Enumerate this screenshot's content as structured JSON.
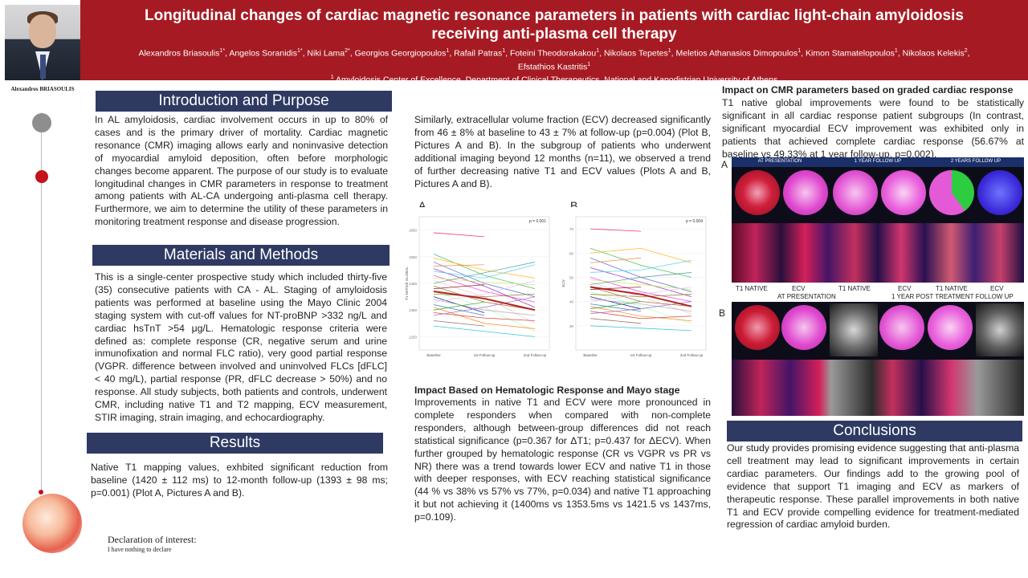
{
  "header": {
    "title": "Longitudinal changes of cardiac magnetic resonance parameters in patients with cardiac light-chain amyloidosis receiving anti-plasma cell therapy",
    "authors": [
      {
        "name": "Alexandros Briasoulis",
        "sup": "1*"
      },
      {
        "name": "Angelos Soranidis",
        "sup": "1*"
      },
      {
        "name": "Niki Lama",
        "sup": "2*"
      },
      {
        "name": "Georgios Georgiopoulos",
        "sup": "1"
      },
      {
        "name": "Rafail Patras",
        "sup": "1"
      },
      {
        "name": "Foteini Theodorakakou",
        "sup": "1"
      },
      {
        "name": "Nikolaos Tepetes",
        "sup": "1"
      },
      {
        "name": "Meletios Athanasios Dimopoulos",
        "sup": "1"
      },
      {
        "name": "Kimon Stamatelopoulos",
        "sup": "1"
      },
      {
        "name": "Nikolaos Kelekis",
        "sup": "2"
      },
      {
        "name": "Efstathios Kastritis",
        "sup": "1"
      }
    ],
    "affiliation_sup": "1",
    "affiliation": "Amyloidosis Center of Excellence, Department of Clinical Therapeutics, National and Kapodistrian University of Athens"
  },
  "presenter": {
    "name": "Alexandros BRIASOULIS"
  },
  "sections": {
    "intro_title": "Introduction and Purpose",
    "intro_text": "In AL amyloidosis, cardiac involvement occurs in up to 80% of cases and is the primary driver of mortality. Cardiac magnetic resonance (CMR) imaging allows early and noninvasive detection of myocardial amyloid deposition, often before morphologic changes become apparent. The purpose of our study is to evaluate longitudinal changes in CMR parameters in response to treatment among patients with AL-CA undergoing anti-plasma cell therapy. Furthermore, we aim to determine the utility of these parameters in monitoring treatment response and disease progression.",
    "methods_title": "Materials and Methods",
    "methods_text": "This is a single-center prospective study which included thirty-five (35) consecutive patients with CA - AL. Staging of amyloidosis patients was performed at baseline using the Mayo Clinic 2004 staging system with cut-off values for NT-proBNP >332 ng/L and cardiac hsTnT >54 μg/L. Hematologic response criteria were defined as: complete response (CR, negative serum and urine inmunofixation and normal FLC ratio), very good partial response (VGPR. difference between involved and uninvolved FLCs [dFLC] < 40 mg/L), partial response (PR, dFLC decrease > 50%) and no response. All study subjects, both patients and controls, underwent CMR, including native T1 and T2 mapping, ECV measurement, STIR imaging, strain imaging, and echocardiography.",
    "results_title": "Results",
    "results_text": "Native T1 mapping values, exhbited significant reduction from baseline (1420 ± 112 ms) to 12-month follow-up (1393 ± 98 ms; p=0.001) (Plot A, Pictures A and B).",
    "ecv_text": "Similarly, extracellular volume fraction (ECV) decreased significantly from 46 ± 8% at baseline to 43 ± 7% at follow-up (p=0.004) (Plot B, Pictures A and B). In the subgroup of patients who underwent additional imaging beyond 12 months (n=11), we observed a trend of further decreasing native T1 and ECV values (Plots A and B, Pictures A and B).",
    "hema_title": "Impact Based on Hematologic Response and Mayo stage",
    "hema_text": "Improvements in native T1 and ECV were more pronounced in complete responders when compared with non-complete responders, although between-group differences did not reach statistical significance (p=0.367 for ΔT1; p=0.437 for ΔECV). When further grouped by hematologic response (CR vs VGPR vs PR vs NR) there was a trend towards lower ECV and native T1 in those with deeper responses, with ECV reaching statistical significance (44 % vs 38% vs 57% vs 77%, p=0.034) and native T1 approaching it but not achieving it (1400ms vs 1353.5ms vs 1421.5 vs 1437ms, p=0.109).",
    "graded_title": "Impact on CMR parameters based on graded cardiac response",
    "graded_text": "T1 native global improvements were found to be statistically significant in all cardiac response patient subgroups (In contrast, significant myocardial ECV improvement was exhibited only in patients that achieved complete cardiac response (56.67% at baseline vs 49.33% at 1 year follow-up, p=0.002).",
    "conclusions_title": "Conclusions",
    "conclusions_text": "Our study provides promising evidence suggesting that anti-plasma cell treatment may lead to significant improvements in certain cardiac parameters. Our findings add to the growing pool of evidence that support T1 imaging and ECV as markers of therapeutic response. These parallel improvements in both native T1 and ECV provide compelling evidence for treatment-mediated regression of cardiac amyloid burden."
  },
  "declaration": {
    "title": "Declaration of interest:",
    "text": "I have nothing to declare"
  },
  "chart_data": [
    {
      "type": "line",
      "panel": "A",
      "pvalue": "p = 0.001",
      "ylabel": "T1 NATIVE GLOBAL",
      "categories": [
        "Baseline",
        "1st Follow-up",
        "2nd Follow-up"
      ],
      "ylim": [
        1200,
        1700
      ],
      "yticks": [
        1250,
        1350,
        1450,
        1550,
        1650
      ],
      "series": [
        {
          "values": [
            1640,
            1625,
            null
          ]
        },
        {
          "values": [
            1560,
            1480,
            1430
          ]
        },
        {
          "values": [
            1545,
            1500,
            1470
          ]
        },
        {
          "values": [
            1530,
            1450,
            1400
          ]
        },
        {
          "values": [
            1515,
            1520,
            null
          ]
        },
        {
          "values": [
            1505,
            1440,
            1360
          ]
        },
        {
          "values": [
            1495,
            1470,
            1520
          ]
        },
        {
          "values": [
            1480,
            1420,
            1380
          ]
        },
        {
          "values": [
            1470,
            1455,
            1445
          ]
        },
        {
          "values": [
            1460,
            1400,
            1300
          ]
        },
        {
          "values": [
            1450,
            1490,
            1530
          ]
        },
        {
          "values": [
            1440,
            1380,
            1350
          ]
        },
        {
          "values": [
            1430,
            1445,
            null
          ]
        },
        {
          "values": [
            1420,
            1360,
            1270
          ]
        },
        {
          "values": [
            1410,
            1400,
            1410
          ]
        },
        {
          "values": [
            1400,
            1340,
            null
          ]
        },
        {
          "values": [
            1390,
            1350,
            1330
          ]
        },
        {
          "values": [
            1380,
            1410,
            1460
          ]
        },
        {
          "values": [
            1370,
            1330,
            null
          ]
        },
        {
          "values": [
            1360,
            1300,
            1280
          ]
        },
        {
          "values": [
            1350,
            1380,
            null
          ]
        },
        {
          "values": [
            1340,
            1320,
            1310
          ]
        },
        {
          "values": [
            1330,
            1360,
            1400
          ]
        },
        {
          "values": [
            1310,
            1290,
            null
          ]
        },
        {
          "values": [
            1290,
            1270,
            1250
          ]
        }
      ],
      "mean": [
        1420,
        1393,
        1350
      ]
    },
    {
      "type": "line",
      "panel": "B",
      "pvalue": "p = 0.004",
      "ylabel": "ECV",
      "categories": [
        "Baseline",
        "1st Follow-up",
        "2nd Follow-up"
      ],
      "ylim": [
        20,
        75
      ],
      "yticks": [
        30,
        40,
        50,
        60,
        70
      ],
      "series": [
        {
          "values": [
            70,
            69,
            null
          ]
        },
        {
          "values": [
            62,
            55,
            50
          ]
        },
        {
          "values": [
            60,
            62,
            56
          ]
        },
        {
          "values": [
            58,
            50,
            44
          ]
        },
        {
          "values": [
            56,
            58,
            null
          ]
        },
        {
          "values": [
            54,
            48,
            42
          ]
        },
        {
          "values": [
            52,
            53,
            57
          ]
        },
        {
          "values": [
            50,
            44,
            40
          ]
        },
        {
          "values": [
            49,
            47,
            45
          ]
        },
        {
          "values": [
            48,
            42,
            35
          ]
        },
        {
          "values": [
            47,
            50,
            52
          ]
        },
        {
          "values": [
            46,
            40,
            38
          ]
        },
        {
          "values": [
            45,
            46,
            null
          ]
        },
        {
          "values": [
            44,
            38,
            31
          ]
        },
        {
          "values": [
            43,
            42,
            43
          ]
        },
        {
          "values": [
            42,
            37,
            null
          ]
        },
        {
          "values": [
            41,
            39,
            36
          ]
        },
        {
          "values": [
            40,
            43,
            46
          ]
        },
        {
          "values": [
            39,
            36,
            null
          ]
        },
        {
          "values": [
            38,
            34,
            32
          ]
        },
        {
          "values": [
            37,
            40,
            null
          ]
        },
        {
          "values": [
            36,
            33,
            34
          ]
        },
        {
          "values": [
            35,
            37,
            40
          ]
        },
        {
          "values": [
            33,
            31,
            null
          ]
        },
        {
          "values": [
            30,
            29,
            28
          ]
        }
      ],
      "mean": [
        46,
        43,
        38
      ]
    }
  ],
  "figure": {
    "panel_a_letter": "A",
    "panel_b_letter": "B",
    "plot_a_letter": "A",
    "plot_b_letter": "B",
    "a_headers": [
      "AT PRESENTATION",
      "1 YEAR FOLLOW UP",
      "2 YEARS FOLLOW UP"
    ],
    "a_labels": [
      "T1 NATIVE",
      "ECV",
      "T1 NATIVE",
      "ECV",
      "T1 NATIVE",
      "ECV"
    ],
    "b_header_left": "AT PRESENTATION",
    "b_header_right": "1 YEAR POST TREATMENT FOLLOW UP"
  },
  "colors": {
    "banner": "#a61b23",
    "section_bar": "#2f3a63",
    "mean_line": "#b22222"
  }
}
